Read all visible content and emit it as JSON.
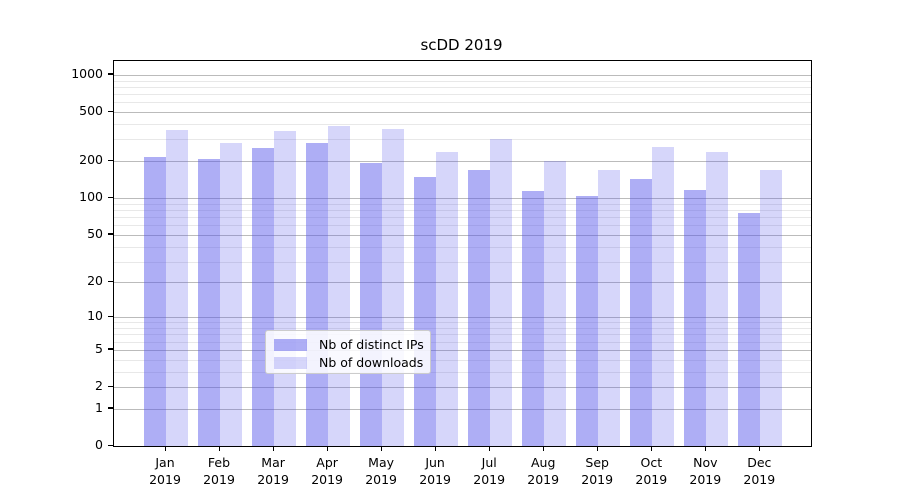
{
  "chart_data": {
    "type": "bar",
    "title": "scDD 2019",
    "year_label": "2019",
    "categories": [
      "Jan",
      "Feb",
      "Mar",
      "Apr",
      "May",
      "Jun",
      "Jul",
      "Aug",
      "Sep",
      "Oct",
      "Nov",
      "Dec"
    ],
    "series": [
      {
        "name": "Nb of distinct IPs",
        "color": "rgba(85,85,235,0.48)",
        "values": [
          216,
          208,
          258,
          279,
          192,
          150,
          168,
          114,
          104,
          143,
          117,
          75
        ]
      },
      {
        "name": "Nb of downloads",
        "color": "rgba(85,85,235,0.24)",
        "values": [
          360,
          280,
          349,
          385,
          362,
          236,
          300,
          200,
          169,
          261,
          236,
          170
        ]
      }
    ],
    "xlabel": "",
    "ylabel": "",
    "y_scale": "log10(value+1)",
    "y_ticks": [
      1000,
      500,
      200,
      100,
      50,
      20,
      10,
      5,
      2,
      1,
      0
    ],
    "y_minor_gridlines": [
      3,
      4,
      6,
      7,
      8,
      9,
      30,
      40,
      60,
      70,
      80,
      90,
      300,
      400,
      600,
      700,
      800,
      900
    ],
    "ylim": [
      0,
      1200
    ],
    "grid": true,
    "legend_position": "lower center",
    "colors": {
      "axis": "#000000",
      "major_grid": "#bbbbbb",
      "minor_grid": "#e8e8e8",
      "background": "#ffffff"
    }
  }
}
